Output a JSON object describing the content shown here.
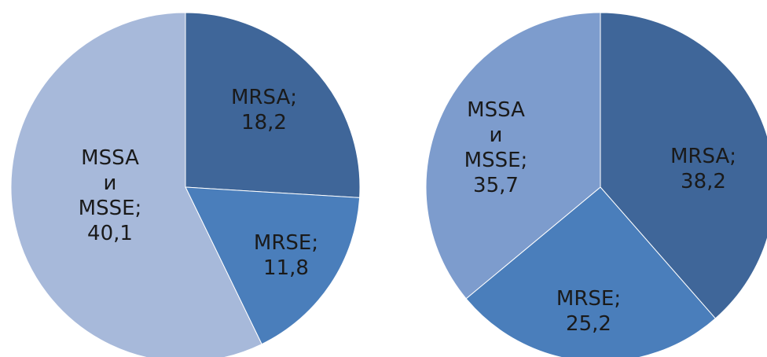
{
  "chart_data": [
    {
      "type": "pie",
      "slices": [
        {
          "label_lines": [
            "MRSA;",
            "18,2"
          ],
          "value": 18.2,
          "color": "#3F6699"
        },
        {
          "label_lines": [
            "MRSE;",
            "11,8"
          ],
          "value": 11.8,
          "color": "#4A7EBB"
        },
        {
          "label_lines": [
            "MSSA",
            "и",
            "MSSE;",
            "40,1"
          ],
          "value": 40.1,
          "color": "#A7B9DA"
        }
      ]
    },
    {
      "type": "pie",
      "slices": [
        {
          "label_lines": [
            "MRSA;",
            "38,2"
          ],
          "value": 38.2,
          "color": "#3F6699"
        },
        {
          "label_lines": [
            "MRSE;",
            "25,2"
          ],
          "value": 25.2,
          "color": "#4A7EBB"
        },
        {
          "label_lines": [
            "MSSA",
            "и",
            "MSSE;",
            "35,7"
          ],
          "value": 35.7,
          "color": "#7D9CCD"
        }
      ]
    }
  ]
}
